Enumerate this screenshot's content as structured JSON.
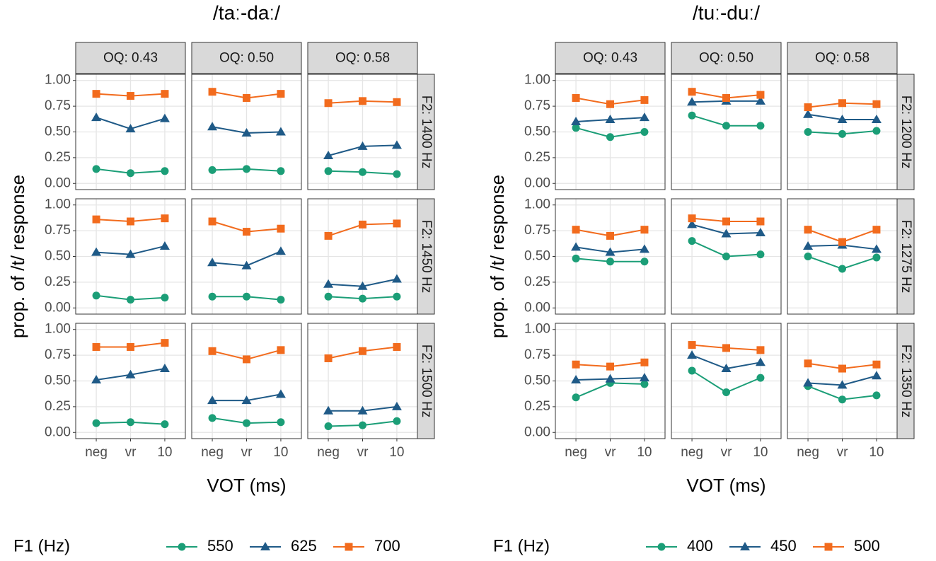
{
  "chart_data": [
    {
      "type": "line",
      "title": "/taː-daː/",
      "x_label": "VOT (ms)",
      "y_label": "prop. of /t/ response",
      "categories": [
        "neg",
        "vr",
        "10"
      ],
      "col_facets": [
        "OQ: 0.43",
        "OQ: 0.50",
        "OQ: 0.58"
      ],
      "row_facets": [
        "F2: 1400 Hz",
        "F2: 1450 Hz",
        "F2: 1500 Hz"
      ],
      "ylim": [
        -0.06,
        1.06
      ],
      "yticks": [
        {
          "value": 0,
          "label": "0.00"
        },
        {
          "value": 0.25,
          "label": "0.25"
        },
        {
          "value": 0.5,
          "label": "0.50"
        },
        {
          "value": 0.75,
          "label": "0.75"
        },
        {
          "value": 1,
          "label": "1.00"
        }
      ],
      "grid": true,
      "legend_title": "F1 (Hz)",
      "legend_position": "bottom",
      "series": [
        {
          "name": "550",
          "color": "#1b9e77",
          "marker": "circle",
          "values": [
            [
              [
                0.14,
                0.1,
                0.12
              ],
              [
                0.13,
                0.14,
                0.12
              ],
              [
                0.12,
                0.11,
                0.09
              ]
            ],
            [
              [
                0.12,
                0.08,
                0.1
              ],
              [
                0.11,
                0.11,
                0.08
              ],
              [
                0.11,
                0.09,
                0.11
              ]
            ],
            [
              [
                0.09,
                0.1,
                0.08
              ],
              [
                0.14,
                0.09,
                0.1
              ],
              [
                0.06,
                0.07,
                0.11
              ]
            ]
          ]
        },
        {
          "name": "625",
          "color": "#1f5a87",
          "marker": "triangle",
          "values": [
            [
              [
                0.64,
                0.53,
                0.63
              ],
              [
                0.55,
                0.49,
                0.5
              ],
              [
                0.27,
                0.36,
                0.37
              ]
            ],
            [
              [
                0.54,
                0.52,
                0.6
              ],
              [
                0.44,
                0.41,
                0.55
              ],
              [
                0.23,
                0.21,
                0.28
              ]
            ],
            [
              [
                0.51,
                0.56,
                0.62
              ],
              [
                0.31,
                0.31,
                0.37
              ],
              [
                0.21,
                0.21,
                0.25
              ]
            ]
          ]
        },
        {
          "name": "700",
          "color": "#f26b1d",
          "marker": "square",
          "values": [
            [
              [
                0.87,
                0.85,
                0.87
              ],
              [
                0.89,
                0.83,
                0.87
              ],
              [
                0.78,
                0.8,
                0.79
              ]
            ],
            [
              [
                0.86,
                0.84,
                0.87
              ],
              [
                0.84,
                0.74,
                0.77
              ],
              [
                0.7,
                0.81,
                0.82
              ]
            ],
            [
              [
                0.83,
                0.83,
                0.87
              ],
              [
                0.79,
                0.71,
                0.8
              ],
              [
                0.72,
                0.79,
                0.83
              ]
            ]
          ]
        }
      ]
    },
    {
      "type": "line",
      "title": "/tuː-duː/",
      "x_label": "VOT (ms)",
      "y_label": "prop. of /t/ response",
      "categories": [
        "neg",
        "vr",
        "10"
      ],
      "col_facets": [
        "OQ: 0.43",
        "OQ: 0.50",
        "OQ: 0.58"
      ],
      "row_facets": [
        "F2: 1200 Hz",
        "F2: 1275 Hz",
        "F2: 1350 Hz"
      ],
      "ylim": [
        -0.06,
        1.06
      ],
      "yticks": [
        {
          "value": 0,
          "label": "0.00"
        },
        {
          "value": 0.25,
          "label": "0.25"
        },
        {
          "value": 0.5,
          "label": "0.50"
        },
        {
          "value": 0.75,
          "label": "0.75"
        },
        {
          "value": 1,
          "label": "1.00"
        }
      ],
      "grid": true,
      "legend_title": "F1 (Hz)",
      "legend_position": "bottom",
      "series": [
        {
          "name": "400",
          "color": "#1b9e77",
          "marker": "circle",
          "values": [
            [
              [
                0.54,
                0.45,
                0.5
              ],
              [
                0.66,
                0.56,
                0.56
              ],
              [
                0.5,
                0.48,
                0.51
              ]
            ],
            [
              [
                0.48,
                0.45,
                0.45
              ],
              [
                0.65,
                0.5,
                0.52
              ],
              [
                0.5,
                0.38,
                0.49
              ]
            ],
            [
              [
                0.34,
                0.48,
                0.47
              ],
              [
                0.6,
                0.39,
                0.53
              ],
              [
                0.45,
                0.32,
                0.36
              ]
            ]
          ]
        },
        {
          "name": "450",
          "color": "#1f5a87",
          "marker": "triangle",
          "values": [
            [
              [
                0.6,
                0.62,
                0.64
              ],
              [
                0.79,
                0.8,
                0.8
              ],
              [
                0.67,
                0.62,
                0.62
              ]
            ],
            [
              [
                0.59,
                0.54,
                0.57
              ],
              [
                0.81,
                0.72,
                0.73
              ],
              [
                0.6,
                0.61,
                0.57
              ]
            ],
            [
              [
                0.51,
                0.52,
                0.53
              ],
              [
                0.75,
                0.62,
                0.68
              ],
              [
                0.48,
                0.46,
                0.55
              ]
            ]
          ]
        },
        {
          "name": "500",
          "color": "#f26b1d",
          "marker": "square",
          "values": [
            [
              [
                0.83,
                0.77,
                0.81
              ],
              [
                0.89,
                0.83,
                0.86
              ],
              [
                0.74,
                0.78,
                0.77
              ]
            ],
            [
              [
                0.76,
                0.7,
                0.76
              ],
              [
                0.87,
                0.84,
                0.84
              ],
              [
                0.76,
                0.64,
                0.76
              ]
            ],
            [
              [
                0.66,
                0.64,
                0.68
              ],
              [
                0.85,
                0.82,
                0.8
              ],
              [
                0.67,
                0.62,
                0.66
              ]
            ]
          ]
        }
      ]
    }
  ]
}
